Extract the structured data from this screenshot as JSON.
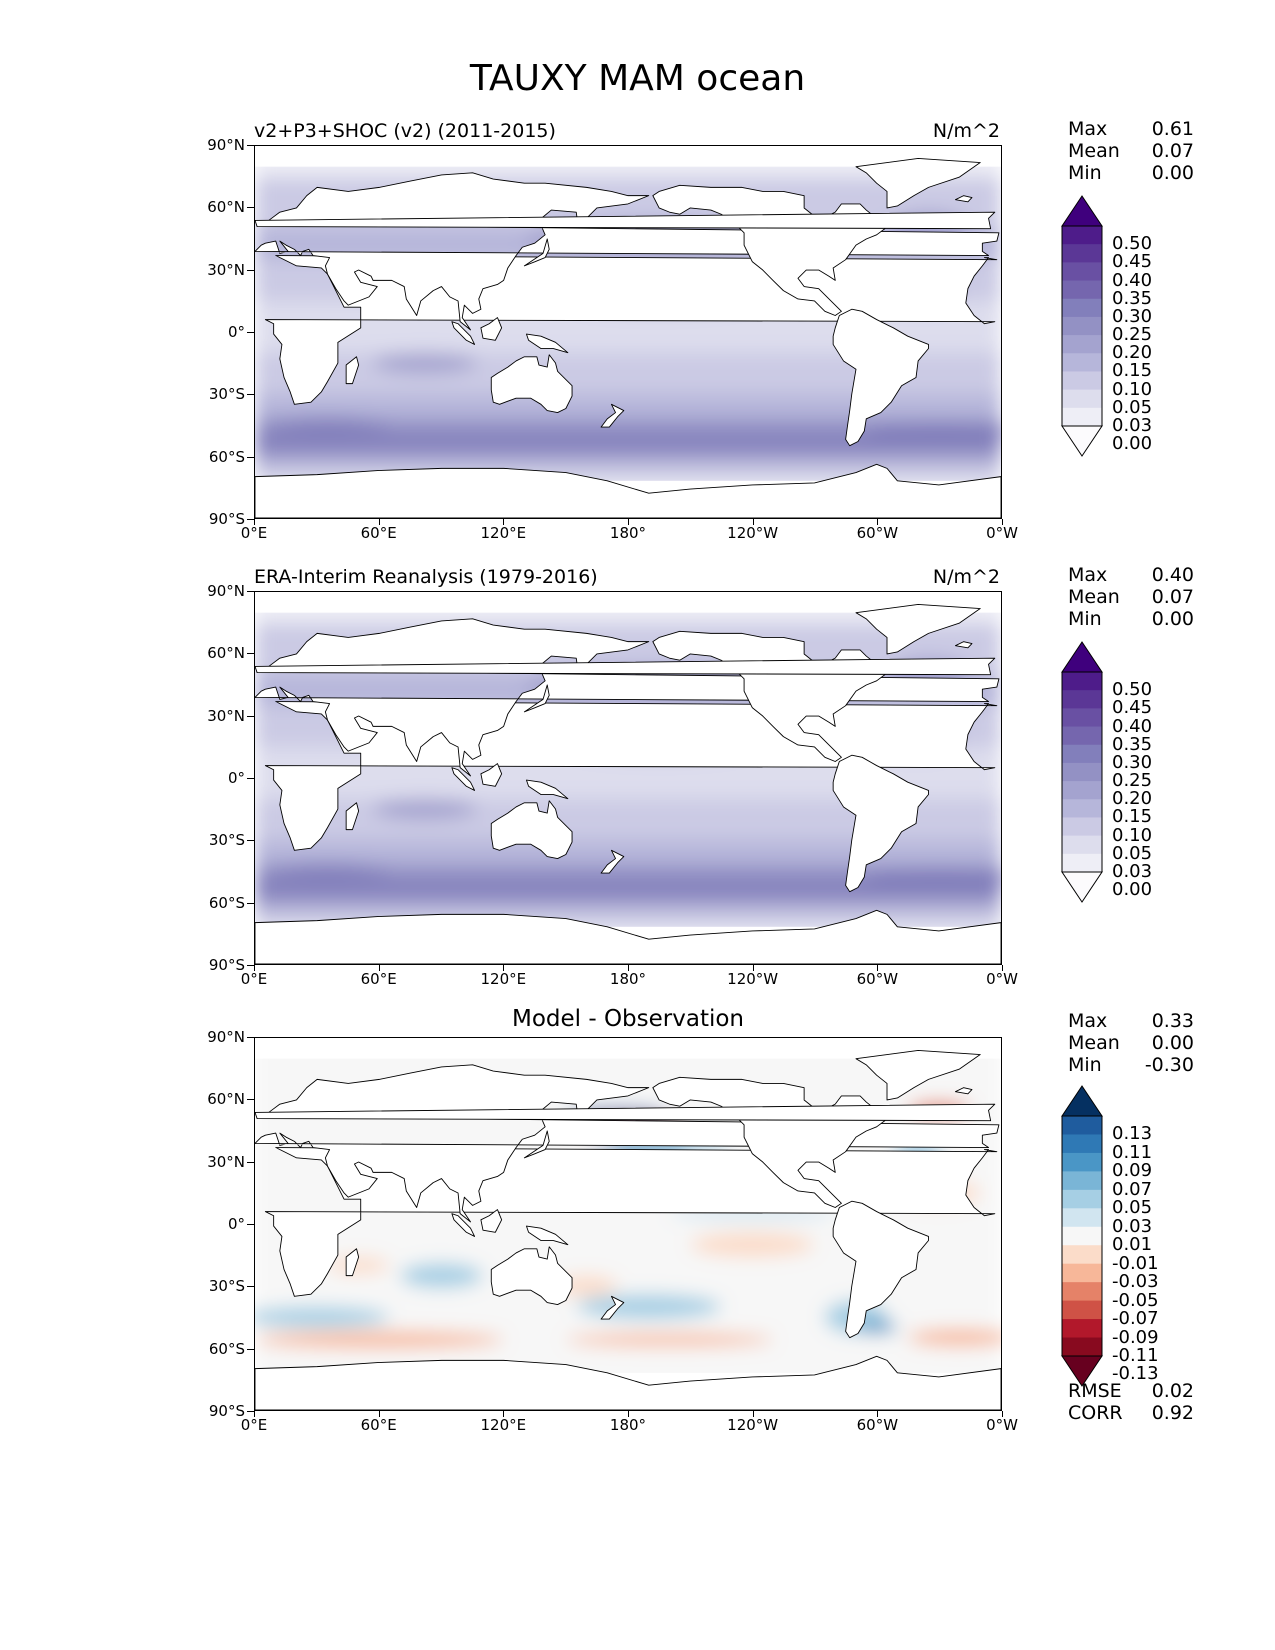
{
  "figure": {
    "title": "TAUXY MAM ocean"
  },
  "x_ticks": [
    "0°E",
    "60°E",
    "120°E",
    "180°",
    "120°W",
    "60°W",
    "0°W"
  ],
  "y_ticks": [
    "90°N",
    "60°N",
    "30°N",
    "0°",
    "30°S",
    "60°S",
    "90°S"
  ],
  "panels": [
    {
      "title_left": "v2+P3+SHOC (v2) (2011-2015)",
      "title_right": "N/m^2",
      "title_center": "",
      "stats": [
        {
          "label": "Max",
          "value": "0.61"
        },
        {
          "label": "Mean",
          "value": "0.07"
        },
        {
          "label": "Min",
          "value": "0.00"
        }
      ],
      "colorbar_labels": [
        "0.50",
        "0.45",
        "0.40",
        "0.35",
        "0.30",
        "0.25",
        "0.20",
        "0.15",
        "0.10",
        "0.05",
        "0.03",
        "0.00"
      ],
      "colorbar_colors": [
        "#3f007d",
        "#4e1c8a",
        "#5b3796",
        "#6950a3",
        "#7566ae",
        "#827fbb",
        "#9391c4",
        "#a4a3cf",
        "#b6b6da",
        "#cbcae4",
        "#dddded",
        "#eeeef6",
        "#fcfbfd"
      ],
      "colormap": "Purples",
      "bottom_stats": []
    },
    {
      "title_left": "ERA-Interim Reanalysis (1979-2016)",
      "title_right": "N/m^2",
      "title_center": "",
      "stats": [
        {
          "label": "Max",
          "value": "0.40"
        },
        {
          "label": "Mean",
          "value": "0.07"
        },
        {
          "label": "Min",
          "value": "0.00"
        }
      ],
      "colorbar_labels": [
        "0.50",
        "0.45",
        "0.40",
        "0.35",
        "0.30",
        "0.25",
        "0.20",
        "0.15",
        "0.10",
        "0.05",
        "0.03",
        "0.00"
      ],
      "colorbar_colors": [
        "#3f007d",
        "#4e1c8a",
        "#5b3796",
        "#6950a3",
        "#7566ae",
        "#827fbb",
        "#9391c4",
        "#a4a3cf",
        "#b6b6da",
        "#cbcae4",
        "#dddded",
        "#eeeef6",
        "#fcfbfd"
      ],
      "colormap": "Purples",
      "bottom_stats": []
    },
    {
      "title_left": "",
      "title_right": "",
      "title_center": "Model - Observation",
      "stats": [
        {
          "label": "Max",
          "value": "0.33"
        },
        {
          "label": "Mean",
          "value": "0.00"
        },
        {
          "label": "Min",
          "value": "-0.30"
        }
      ],
      "colorbar_labels": [
        "0.13",
        "0.11",
        "0.09",
        "0.07",
        "0.05",
        "0.03",
        "0.01",
        "-0.01",
        "-0.03",
        "-0.05",
        "-0.07",
        "-0.09",
        "-0.11",
        "-0.13"
      ],
      "colorbar_colors": [
        "#053061",
        "#1f5c9e",
        "#2f79b5",
        "#4a96c6",
        "#7ab5d6",
        "#a6cfe4",
        "#d1e5f0",
        "#f7f7f7",
        "#fbdcc9",
        "#f7b799",
        "#e58268",
        "#cf5246",
        "#b2182b",
        "#880a1f",
        "#67001f"
      ],
      "colormap": "RdBu_r",
      "bottom_stats": [
        {
          "label": "RMSE",
          "value": "0.02"
        },
        {
          "label": "CORR",
          "value": "0.92"
        }
      ]
    }
  ]
}
